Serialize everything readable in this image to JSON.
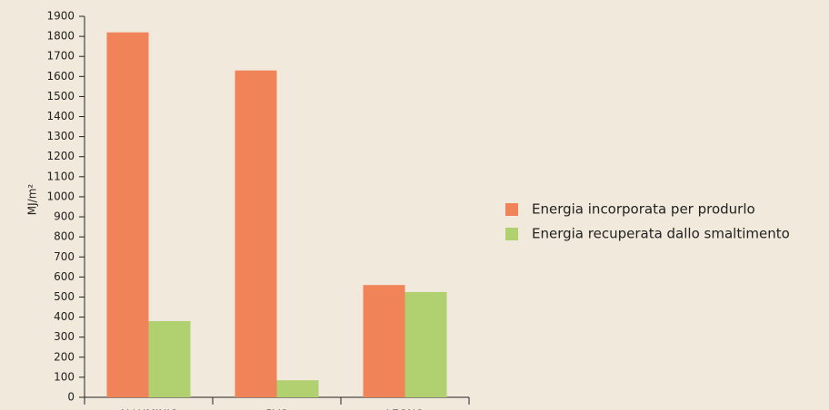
{
  "chart_data": {
    "type": "bar",
    "y_label": "MJ/m²",
    "categories": [
      "ALLUMINIO",
      "PVC",
      "LEGNO"
    ],
    "series": [
      {
        "name": "Energia incorporata per produrlo",
        "color": "#f08358",
        "values": [
          1820,
          1630,
          560
        ]
      },
      {
        "name": "Energia recuperata dallo smaltimento",
        "color": "#b1d070",
        "values": [
          380,
          85,
          525
        ]
      }
    ],
    "ylim": [
      0,
      1900
    ],
    "yticks": [
      0,
      100,
      200,
      300,
      400,
      500,
      600,
      700,
      800,
      900,
      1000,
      1100,
      1200,
      1300,
      1400,
      1500,
      1600,
      1700,
      1800,
      1900
    ],
    "grid": false,
    "legend": "right"
  }
}
